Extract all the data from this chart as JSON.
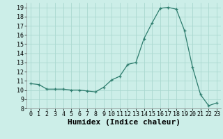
{
  "x": [
    0,
    1,
    2,
    3,
    4,
    5,
    6,
    7,
    8,
    9,
    10,
    11,
    12,
    13,
    14,
    15,
    16,
    17,
    18,
    19,
    20,
    21,
    22,
    23
  ],
  "y": [
    10.7,
    10.6,
    10.1,
    10.1,
    10.1,
    10.0,
    10.0,
    9.9,
    9.8,
    10.3,
    11.1,
    11.5,
    12.8,
    13.0,
    15.6,
    17.3,
    18.9,
    19.0,
    18.8,
    16.5,
    12.5,
    9.5,
    8.3,
    8.6
  ],
  "xlabel": "Humidex (Indice chaleur)",
  "ylim": [
    8,
    19.5
  ],
  "xlim": [
    -0.5,
    23.5
  ],
  "line_color": "#2e7d6e",
  "marker": "+",
  "bg_color": "#cceee8",
  "grid_color": "#aad8d0",
  "tick_fontsize": 6,
  "xlabel_fontsize": 8,
  "yticks": [
    8,
    9,
    10,
    11,
    12,
    13,
    14,
    15,
    16,
    17,
    18,
    19
  ],
  "xticks": [
    0,
    1,
    2,
    3,
    4,
    5,
    6,
    7,
    8,
    9,
    10,
    11,
    12,
    13,
    14,
    15,
    16,
    17,
    18,
    19,
    20,
    21,
    22,
    23
  ]
}
